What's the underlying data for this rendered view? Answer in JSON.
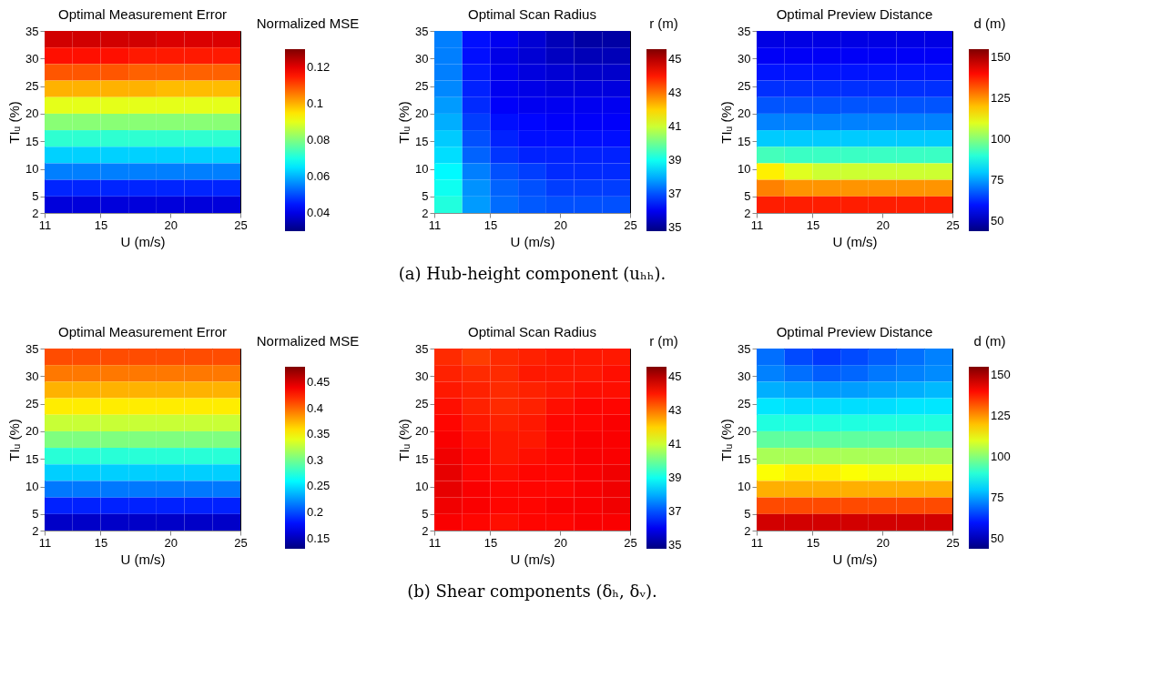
{
  "chart_data": [
    {
      "type": "heatmap",
      "title": "Optimal Measurement Error",
      "xlabel": "U (m/s)",
      "ylabel": "TIᵤ (%)",
      "clabel": "Normalized MSE",
      "x": [
        12,
        14,
        16,
        18,
        20,
        22,
        24
      ],
      "y": [
        33.5,
        30.5,
        27.5,
        24.5,
        21.5,
        18.5,
        15.5,
        12.5,
        9.5,
        6.5,
        3.5
      ],
      "xlim": [
        11,
        25
      ],
      "ylim": [
        2,
        35
      ],
      "xticks": [
        11,
        15,
        20,
        25
      ],
      "yticks": [
        2,
        5,
        10,
        15,
        20,
        25,
        30,
        35
      ],
      "clim": [
        0.03,
        0.13
      ],
      "cticks": [
        0.04,
        0.06,
        0.08,
        0.1,
        0.12
      ],
      "cells": [
        [
          0.122,
          0.122,
          0.122,
          0.122,
          0.121,
          0.121,
          0.121
        ],
        [
          0.116,
          0.116,
          0.116,
          0.115,
          0.115,
          0.115,
          0.115
        ],
        [
          0.109,
          0.109,
          0.109,
          0.108,
          0.108,
          0.108,
          0.108
        ],
        [
          0.1,
          0.1,
          0.1,
          0.1,
          0.099,
          0.099,
          0.099
        ],
        [
          0.09,
          0.09,
          0.09,
          0.09,
          0.09,
          0.09,
          0.09
        ],
        [
          0.081,
          0.081,
          0.081,
          0.081,
          0.081,
          0.081,
          0.081
        ],
        [
          0.072,
          0.072,
          0.072,
          0.072,
          0.072,
          0.072,
          0.072
        ],
        [
          0.063,
          0.063,
          0.063,
          0.063,
          0.063,
          0.063,
          0.063
        ],
        [
          0.055,
          0.055,
          0.055,
          0.055,
          0.055,
          0.055,
          0.055
        ],
        [
          0.046,
          0.046,
          0.046,
          0.046,
          0.046,
          0.046,
          0.046
        ],
        [
          0.039,
          0.039,
          0.039,
          0.039,
          0.039,
          0.039,
          0.039
        ]
      ]
    },
    {
      "type": "heatmap",
      "title": "Optimal Scan Radius",
      "xlabel": "U (m/s)",
      "ylabel": "TIᵤ (%)",
      "clabel": "r (m)",
      "x": [
        12,
        14,
        16,
        18,
        20,
        22,
        24
      ],
      "y": [
        33.5,
        30.5,
        27.5,
        24.5,
        21.5,
        18.5,
        15.5,
        12.5,
        9.5,
        6.5,
        3.5
      ],
      "xlim": [
        11,
        25
      ],
      "ylim": [
        2,
        35
      ],
      "xticks": [
        11,
        15,
        20,
        25
      ],
      "yticks": [
        2,
        5,
        10,
        15,
        20,
        25,
        30,
        35
      ],
      "clim": [
        34.8,
        45.6
      ],
      "cticks": [
        35,
        37,
        39,
        41,
        43,
        45
      ],
      "cells": [
        [
          37.5,
          36.3,
          36,
          35.7,
          35.4,
          35.2,
          35.2
        ],
        [
          37.5,
          36.3,
          35.9,
          35.7,
          35.5,
          35.4,
          35.4
        ],
        [
          37.5,
          36.4,
          36,
          35.8,
          35.7,
          35.6,
          35.6
        ],
        [
          37.6,
          36.5,
          36,
          35.9,
          35.8,
          35.8,
          35.8
        ],
        [
          37.8,
          36.6,
          36.1,
          36,
          36,
          36,
          36
        ],
        [
          38,
          36.8,
          36.3,
          36.2,
          36.1,
          36.1,
          36.1
        ],
        [
          38.3,
          37,
          36.5,
          36.3,
          36.3,
          36.3,
          36.3
        ],
        [
          38.5,
          37.2,
          36.7,
          36.5,
          36.5,
          36.5,
          36.5
        ],
        [
          38.8,
          37.5,
          37,
          36.8,
          36.6,
          36.6,
          36.6
        ],
        [
          39,
          37.7,
          37.2,
          37,
          36.8,
          36.8,
          36.8
        ],
        [
          39.2,
          37.8,
          37.3,
          37.1,
          37,
          37,
          37
        ]
      ],
      "annotations": [
        "(a) Hub-height component (uₕₕ)."
      ]
    },
    {
      "type": "heatmap",
      "title": "Optimal Preview Distance",
      "xlabel": "U (m/s)",
      "ylabel": "TIᵤ (%)",
      "clabel": "d (m)",
      "x": [
        12,
        14,
        16,
        18,
        20,
        22,
        24
      ],
      "y": [
        33.5,
        30.5,
        27.5,
        24.5,
        21.5,
        18.5,
        15.5,
        12.5,
        9.5,
        6.5,
        3.5
      ],
      "xlim": [
        11,
        25
      ],
      "ylim": [
        2,
        35
      ],
      "xticks": [
        11,
        15,
        20,
        25
      ],
      "yticks": [
        2,
        5,
        10,
        15,
        20,
        25,
        30,
        35
      ],
      "clim": [
        44,
        155
      ],
      "cticks": [
        50,
        75,
        100,
        125,
        150
      ],
      "cells": [
        [
          55,
          55,
          55,
          55,
          55,
          55,
          55
        ],
        [
          57,
          57,
          57,
          57,
          57,
          57,
          57
        ],
        [
          60,
          60,
          60,
          60,
          60,
          60,
          60
        ],
        [
          63,
          63,
          63,
          63,
          63,
          63,
          63
        ],
        [
          67,
          67,
          67,
          67,
          67,
          67,
          67
        ],
        [
          72,
          72,
          72,
          72,
          72,
          72,
          72
        ],
        [
          80,
          80,
          80,
          80,
          80,
          80,
          80
        ],
        [
          93,
          92,
          92,
          92,
          92,
          92,
          92
        ],
        [
          115,
          110,
          108,
          108,
          108,
          108,
          108
        ],
        [
          127,
          125,
          125,
          125,
          125,
          125,
          125
        ],
        [
          138,
          138,
          138,
          138,
          138,
          138,
          138
        ]
      ]
    },
    {
      "type": "heatmap",
      "title": "Optimal Measurement Error",
      "xlabel": "U (m/s)",
      "ylabel": "TIᵤ (%)",
      "clabel": "Normalized MSE",
      "x": [
        12,
        14,
        16,
        18,
        20,
        22,
        24
      ],
      "y": [
        33.5,
        30.5,
        27.5,
        24.5,
        21.5,
        18.5,
        15.5,
        12.5,
        9.5,
        6.5,
        3.5
      ],
      "xlim": [
        11,
        25
      ],
      "ylim": [
        2,
        35
      ],
      "xticks": [
        11,
        15,
        20,
        25
      ],
      "yticks": [
        2,
        5,
        10,
        15,
        20,
        25,
        30,
        35
      ],
      "clim": [
        0.13,
        0.48
      ],
      "cticks": [
        0.15,
        0.2,
        0.25,
        0.3,
        0.35,
        0.4,
        0.45
      ],
      "cells": [
        [
          0.41,
          0.41,
          0.41,
          0.41,
          0.41,
          0.41,
          0.41
        ],
        [
          0.395,
          0.395,
          0.395,
          0.395,
          0.395,
          0.395,
          0.395
        ],
        [
          0.375,
          0.375,
          0.375,
          0.375,
          0.375,
          0.375,
          0.375
        ],
        [
          0.355,
          0.355,
          0.355,
          0.355,
          0.355,
          0.355,
          0.355
        ],
        [
          0.33,
          0.33,
          0.33,
          0.33,
          0.33,
          0.33,
          0.33
        ],
        [
          0.305,
          0.305,
          0.305,
          0.305,
          0.305,
          0.305,
          0.305
        ],
        [
          0.275,
          0.275,
          0.275,
          0.275,
          0.275,
          0.275,
          0.275
        ],
        [
          0.245,
          0.245,
          0.245,
          0.245,
          0.245,
          0.245,
          0.245
        ],
        [
          0.215,
          0.215,
          0.215,
          0.215,
          0.215,
          0.215,
          0.215
        ],
        [
          0.185,
          0.185,
          0.185,
          0.185,
          0.185,
          0.185,
          0.185
        ],
        [
          0.155,
          0.155,
          0.155,
          0.155,
          0.155,
          0.155,
          0.155
        ]
      ]
    },
    {
      "type": "heatmap",
      "title": "Optimal Scan Radius",
      "xlabel": "U (m/s)",
      "ylabel": "TIᵤ (%)",
      "clabel": "r (m)",
      "x": [
        12,
        14,
        16,
        18,
        20,
        22,
        24
      ],
      "y": [
        33.5,
        30.5,
        27.5,
        24.5,
        21.5,
        18.5,
        15.5,
        12.5,
        9.5,
        6.5,
        3.5
      ],
      "xlim": [
        11,
        25
      ],
      "ylim": [
        2,
        35
      ],
      "xticks": [
        11,
        15,
        20,
        25
      ],
      "yticks": [
        2,
        5,
        10,
        15,
        20,
        25,
        30,
        35
      ],
      "clim": [
        34.8,
        45.6
      ],
      "cticks": [
        35,
        37,
        39,
        41,
        43,
        45
      ],
      "cells": [
        [
          43.8,
          43.6,
          43.8,
          43.9,
          44,
          44,
          44
        ],
        [
          43.9,
          43.8,
          43.8,
          44,
          44,
          44,
          44.1
        ],
        [
          44,
          43.9,
          43.8,
          43.9,
          44,
          44.1,
          44.1
        ],
        [
          44.1,
          43.9,
          43.8,
          43.9,
          44.1,
          44.2,
          44.2
        ],
        [
          44.2,
          44,
          43.9,
          44,
          44.2,
          44.2,
          44.3
        ],
        [
          44.3,
          44.1,
          44,
          44,
          44.2,
          44.3,
          44.3
        ],
        [
          44.4,
          44.2,
          44,
          44.1,
          44.2,
          44.3,
          44.3
        ],
        [
          44.5,
          44.2,
          44.1,
          44.2,
          44.2,
          44.3,
          44.4
        ],
        [
          44.5,
          44.3,
          44.2,
          44.2,
          44.2,
          44.3,
          44.4
        ],
        [
          44.4,
          44.3,
          44.2,
          44.2,
          44.3,
          44.3,
          44.4
        ],
        [
          44.3,
          44.2,
          44.1,
          44.2,
          44.2,
          44.3,
          44.3
        ]
      ],
      "annotations": [
        "(b) Shear components (δₕ, δᵥ)."
      ]
    },
    {
      "type": "heatmap",
      "title": "Optimal Preview Distance",
      "xlabel": "U (m/s)",
      "ylabel": "TIᵤ (%)",
      "clabel": "d (m)",
      "x": [
        12,
        14,
        16,
        18,
        20,
        22,
        24
      ],
      "y": [
        33.5,
        30.5,
        27.5,
        24.5,
        21.5,
        18.5,
        15.5,
        12.5,
        9.5,
        6.5,
        3.5
      ],
      "xlim": [
        11,
        25
      ],
      "ylim": [
        2,
        35
      ],
      "xticks": [
        11,
        15,
        20,
        25
      ],
      "yticks": [
        2,
        5,
        10,
        15,
        20,
        25,
        30,
        35
      ],
      "clim": [
        44,
        155
      ],
      "cticks": [
        50,
        75,
        100,
        125,
        150
      ],
      "cells": [
        [
          70,
          66,
          64,
          66,
          68,
          70,
          72
        ],
        [
          72,
          70,
          68,
          69,
          71,
          72,
          73
        ],
        [
          77,
          76,
          75,
          75,
          76,
          77,
          78
        ],
        [
          83,
          82,
          82,
          82,
          82,
          83,
          83
        ],
        [
          89,
          89,
          89,
          89,
          89,
          89,
          89
        ],
        [
          96,
          96,
          96,
          96,
          96,
          96,
          96
        ],
        [
          104,
          104,
          104,
          104,
          104,
          104,
          104
        ],
        [
          113,
          115,
          115,
          113,
          112,
          112,
          112
        ],
        [
          122,
          122,
          122,
          122,
          122,
          122,
          122
        ],
        [
          133,
          133,
          133,
          133,
          133,
          133,
          133
        ],
        [
          146,
          146,
          146,
          146,
          146,
          146,
          146
        ]
      ]
    }
  ]
}
